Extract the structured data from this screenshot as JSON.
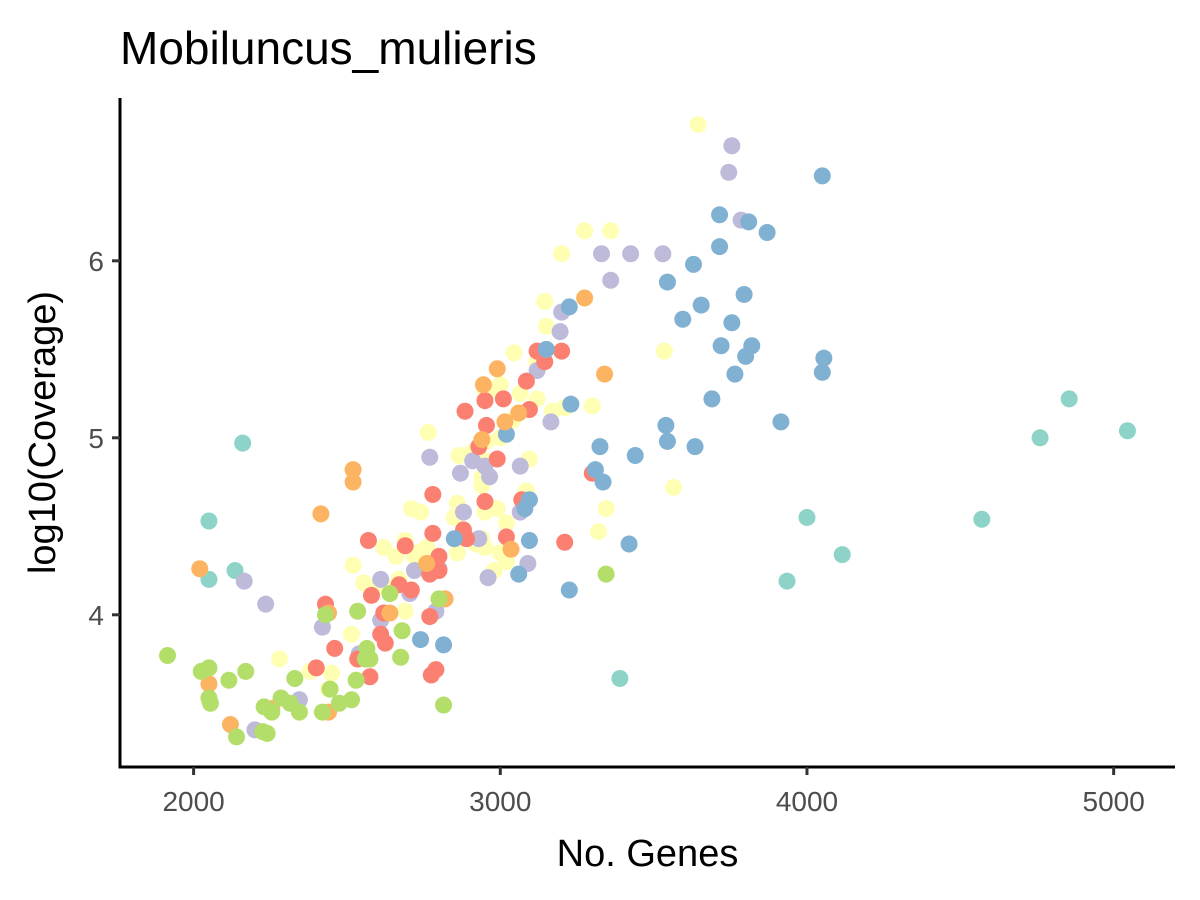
{
  "chart_data": {
    "type": "scatter",
    "title": "Mobiluncus_mulieris",
    "xlabel": "No. Genes",
    "ylabel": "log10(Coverage)",
    "xlim": [
      1760,
      5200
    ],
    "ylim": [
      3.14,
      6.92
    ],
    "x_ticks": [
      2000,
      3000,
      4000,
      5000
    ],
    "x_tick_labels": [
      "2000",
      "3000",
      "4000",
      "5000"
    ],
    "y_ticks": [
      4,
      5,
      6
    ],
    "y_tick_labels": [
      "4",
      "5",
      "6"
    ],
    "grid": false,
    "legend": "none",
    "series": [
      {
        "color": "#8DD3C7",
        "points": [
          [
            2160,
            4.97
          ],
          [
            2050,
            4.53
          ],
          [
            2050,
            4.2
          ],
          [
            2135,
            4.25
          ],
          [
            3390,
            3.64
          ],
          [
            3935,
            4.19
          ],
          [
            4000,
            4.55
          ],
          [
            4115,
            4.34
          ],
          [
            4570,
            4.54
          ],
          [
            4760,
            5.0
          ],
          [
            4855,
            5.22
          ],
          [
            5045,
            5.04
          ]
        ]
      },
      {
        "color": "#FFFFB3",
        "points": [
          [
            3645,
            6.77
          ],
          [
            3275,
            6.17
          ],
          [
            3360,
            6.17
          ],
          [
            3200,
            6.04
          ],
          [
            3145,
            5.77
          ],
          [
            3150,
            5.63
          ],
          [
            3045,
            5.48
          ],
          [
            3120,
            5.43
          ],
          [
            3535,
            5.49
          ],
          [
            3000,
            5.3
          ],
          [
            2990,
            5.27
          ],
          [
            2950,
            5.27
          ],
          [
            3065,
            5.25
          ],
          [
            3120,
            5.22
          ],
          [
            3210,
            5.17
          ],
          [
            3170,
            5.15
          ],
          [
            3300,
            5.18
          ],
          [
            3040,
            5.1
          ],
          [
            2765,
            5.03
          ],
          [
            2955,
            4.98
          ],
          [
            3000,
            5.0
          ],
          [
            2910,
            4.92
          ],
          [
            2950,
            4.87
          ],
          [
            2865,
            4.9
          ],
          [
            2940,
            4.78
          ],
          [
            2940,
            4.73
          ],
          [
            3095,
            4.88
          ],
          [
            3085,
            4.7
          ],
          [
            3565,
            4.72
          ],
          [
            2860,
            4.63
          ],
          [
            2850,
            4.55
          ],
          [
            2710,
            4.6
          ],
          [
            2740,
            4.58
          ],
          [
            2950,
            4.58
          ],
          [
            2990,
            4.6
          ],
          [
            3345,
            4.6
          ],
          [
            3020,
            4.52
          ],
          [
            3320,
            4.47
          ],
          [
            2890,
            4.43
          ],
          [
            2940,
            4.43
          ],
          [
            2920,
            4.4
          ],
          [
            2950,
            4.38
          ],
          [
            2860,
            4.35
          ],
          [
            2730,
            4.35
          ],
          [
            2760,
            4.38
          ],
          [
            2620,
            4.38
          ],
          [
            2690,
            4.42
          ],
          [
            2720,
            4.33
          ],
          [
            2660,
            4.33
          ],
          [
            2755,
            4.28
          ],
          [
            2670,
            4.2
          ],
          [
            2555,
            4.18
          ],
          [
            2590,
            4.15
          ],
          [
            2635,
            4.15
          ],
          [
            2520,
            4.28
          ],
          [
            2690,
            4.02
          ],
          [
            3020,
            4.3
          ],
          [
            3000,
            4.35
          ],
          [
            2980,
            4.25
          ],
          [
            2515,
            3.89
          ],
          [
            2440,
            3.58
          ],
          [
            2450,
            3.67
          ],
          [
            2380,
            3.68
          ],
          [
            2280,
            3.75
          ]
        ]
      },
      {
        "color": "#BEBADA",
        "points": [
          [
            3755,
            6.65
          ],
          [
            3745,
            6.5
          ],
          [
            3785,
            6.23
          ],
          [
            3330,
            6.04
          ],
          [
            3425,
            6.04
          ],
          [
            3530,
            6.04
          ],
          [
            3360,
            5.89
          ],
          [
            3200,
            5.71
          ],
          [
            3195,
            5.6
          ],
          [
            3120,
            5.38
          ],
          [
            3165,
            5.09
          ],
          [
            2910,
            4.87
          ],
          [
            2870,
            4.8
          ],
          [
            2950,
            4.84
          ],
          [
            2965,
            4.78
          ],
          [
            2770,
            4.89
          ],
          [
            3065,
            4.84
          ],
          [
            2880,
            4.58
          ],
          [
            3065,
            4.58
          ],
          [
            2930,
            4.43
          ],
          [
            3090,
            4.29
          ],
          [
            2960,
            4.21
          ],
          [
            2800,
            4.26
          ],
          [
            2790,
            4.02
          ],
          [
            2720,
            4.25
          ],
          [
            2705,
            4.12
          ],
          [
            2610,
            4.2
          ],
          [
            2610,
            3.97
          ],
          [
            2540,
            3.78
          ],
          [
            2420,
            3.93
          ],
          [
            2345,
            3.52
          ],
          [
            2200,
            3.35
          ],
          [
            2235,
            4.06
          ],
          [
            2165,
            4.19
          ]
        ]
      },
      {
        "color": "#FB8072",
        "points": [
          [
            3120,
            5.49
          ],
          [
            3200,
            5.49
          ],
          [
            3145,
            5.43
          ],
          [
            3085,
            5.32
          ],
          [
            2950,
            5.21
          ],
          [
            3010,
            5.22
          ],
          [
            3095,
            5.16
          ],
          [
            2885,
            5.15
          ],
          [
            2955,
            5.07
          ],
          [
            2990,
            4.88
          ],
          [
            2930,
            4.95
          ],
          [
            3300,
            4.8
          ],
          [
            3070,
            4.65
          ],
          [
            2780,
            4.68
          ],
          [
            2950,
            4.64
          ],
          [
            2880,
            4.48
          ],
          [
            2890,
            4.43
          ],
          [
            2780,
            4.46
          ],
          [
            3020,
            4.44
          ],
          [
            3210,
            4.41
          ],
          [
            2570,
            4.42
          ],
          [
            2690,
            4.39
          ],
          [
            2800,
            4.33
          ],
          [
            2800,
            4.25
          ],
          [
            2770,
            4.23
          ],
          [
            2670,
            4.17
          ],
          [
            2710,
            4.14
          ],
          [
            2580,
            4.11
          ],
          [
            2620,
            4.01
          ],
          [
            2430,
            4.06
          ],
          [
            2610,
            3.89
          ],
          [
            2625,
            3.84
          ],
          [
            2460,
            3.81
          ],
          [
            2535,
            3.75
          ],
          [
            2400,
            3.7
          ],
          [
            2575,
            3.65
          ],
          [
            2790,
            3.69
          ],
          [
            2775,
            3.66
          ],
          [
            2770,
            3.99
          ]
        ]
      },
      {
        "color": "#80B1D3",
        "points": [
          [
            4050,
            6.48
          ],
          [
            3715,
            6.26
          ],
          [
            3810,
            6.22
          ],
          [
            3870,
            6.16
          ],
          [
            3715,
            6.08
          ],
          [
            3630,
            5.98
          ],
          [
            3225,
            5.74
          ],
          [
            3545,
            5.88
          ],
          [
            3655,
            5.75
          ],
          [
            3595,
            5.67
          ],
          [
            3755,
            5.65
          ],
          [
            3795,
            5.81
          ],
          [
            3720,
            5.52
          ],
          [
            3820,
            5.52
          ],
          [
            3800,
            5.46
          ],
          [
            4055,
            5.45
          ],
          [
            3150,
            5.5
          ],
          [
            3765,
            5.36
          ],
          [
            4050,
            5.37
          ],
          [
            3690,
            5.22
          ],
          [
            3230,
            5.19
          ],
          [
            3915,
            5.09
          ],
          [
            3540,
            5.07
          ],
          [
            3545,
            4.98
          ],
          [
            3020,
            5.02
          ],
          [
            3325,
            4.95
          ],
          [
            3635,
            4.95
          ],
          [
            3310,
            4.82
          ],
          [
            3440,
            4.9
          ],
          [
            3335,
            4.75
          ],
          [
            3095,
            4.65
          ],
          [
            3080,
            4.6
          ],
          [
            3095,
            4.42
          ],
          [
            2850,
            4.43
          ],
          [
            3420,
            4.4
          ],
          [
            3060,
            4.23
          ],
          [
            3225,
            4.14
          ],
          [
            2740,
            3.86
          ],
          [
            2815,
            3.83
          ]
        ]
      },
      {
        "color": "#FDB462",
        "points": [
          [
            3275,
            5.79
          ],
          [
            2990,
            5.39
          ],
          [
            2945,
            5.3
          ],
          [
            3340,
            5.36
          ],
          [
            3060,
            5.14
          ],
          [
            3015,
            5.09
          ],
          [
            2940,
            4.99
          ],
          [
            2520,
            4.82
          ],
          [
            2520,
            4.75
          ],
          [
            2415,
            4.57
          ],
          [
            3035,
            4.37
          ],
          [
            2760,
            4.29
          ],
          [
            2820,
            4.09
          ],
          [
            2640,
            4.01
          ],
          [
            2440,
            4.01
          ],
          [
            2020,
            4.26
          ],
          [
            2050,
            3.61
          ],
          [
            2120,
            3.38
          ],
          [
            2255,
            3.47
          ],
          [
            2440,
            3.45
          ]
        ]
      },
      {
        "color": "#B3DE69",
        "points": [
          [
            1915,
            3.77
          ],
          [
            2025,
            3.68
          ],
          [
            2050,
            3.7
          ],
          [
            2050,
            3.53
          ],
          [
            2055,
            3.5
          ],
          [
            2115,
            3.63
          ],
          [
            2170,
            3.68
          ],
          [
            2140,
            3.31
          ],
          [
            2225,
            3.34
          ],
          [
            2240,
            3.33
          ],
          [
            2230,
            3.48
          ],
          [
            2255,
            3.45
          ],
          [
            2285,
            3.53
          ],
          [
            2315,
            3.5
          ],
          [
            2345,
            3.45
          ],
          [
            2330,
            3.64
          ],
          [
            2420,
            3.45
          ],
          [
            2445,
            3.58
          ],
          [
            2475,
            3.5
          ],
          [
            2515,
            3.52
          ],
          [
            2530,
            3.63
          ],
          [
            2560,
            3.75
          ],
          [
            2565,
            3.81
          ],
          [
            2575,
            3.75
          ],
          [
            2535,
            4.02
          ],
          [
            2430,
            4.0
          ],
          [
            2640,
            4.12
          ],
          [
            2680,
            3.91
          ],
          [
            2675,
            3.76
          ],
          [
            2800,
            4.09
          ],
          [
            2815,
            3.49
          ],
          [
            3345,
            4.23
          ]
        ]
      }
    ]
  }
}
